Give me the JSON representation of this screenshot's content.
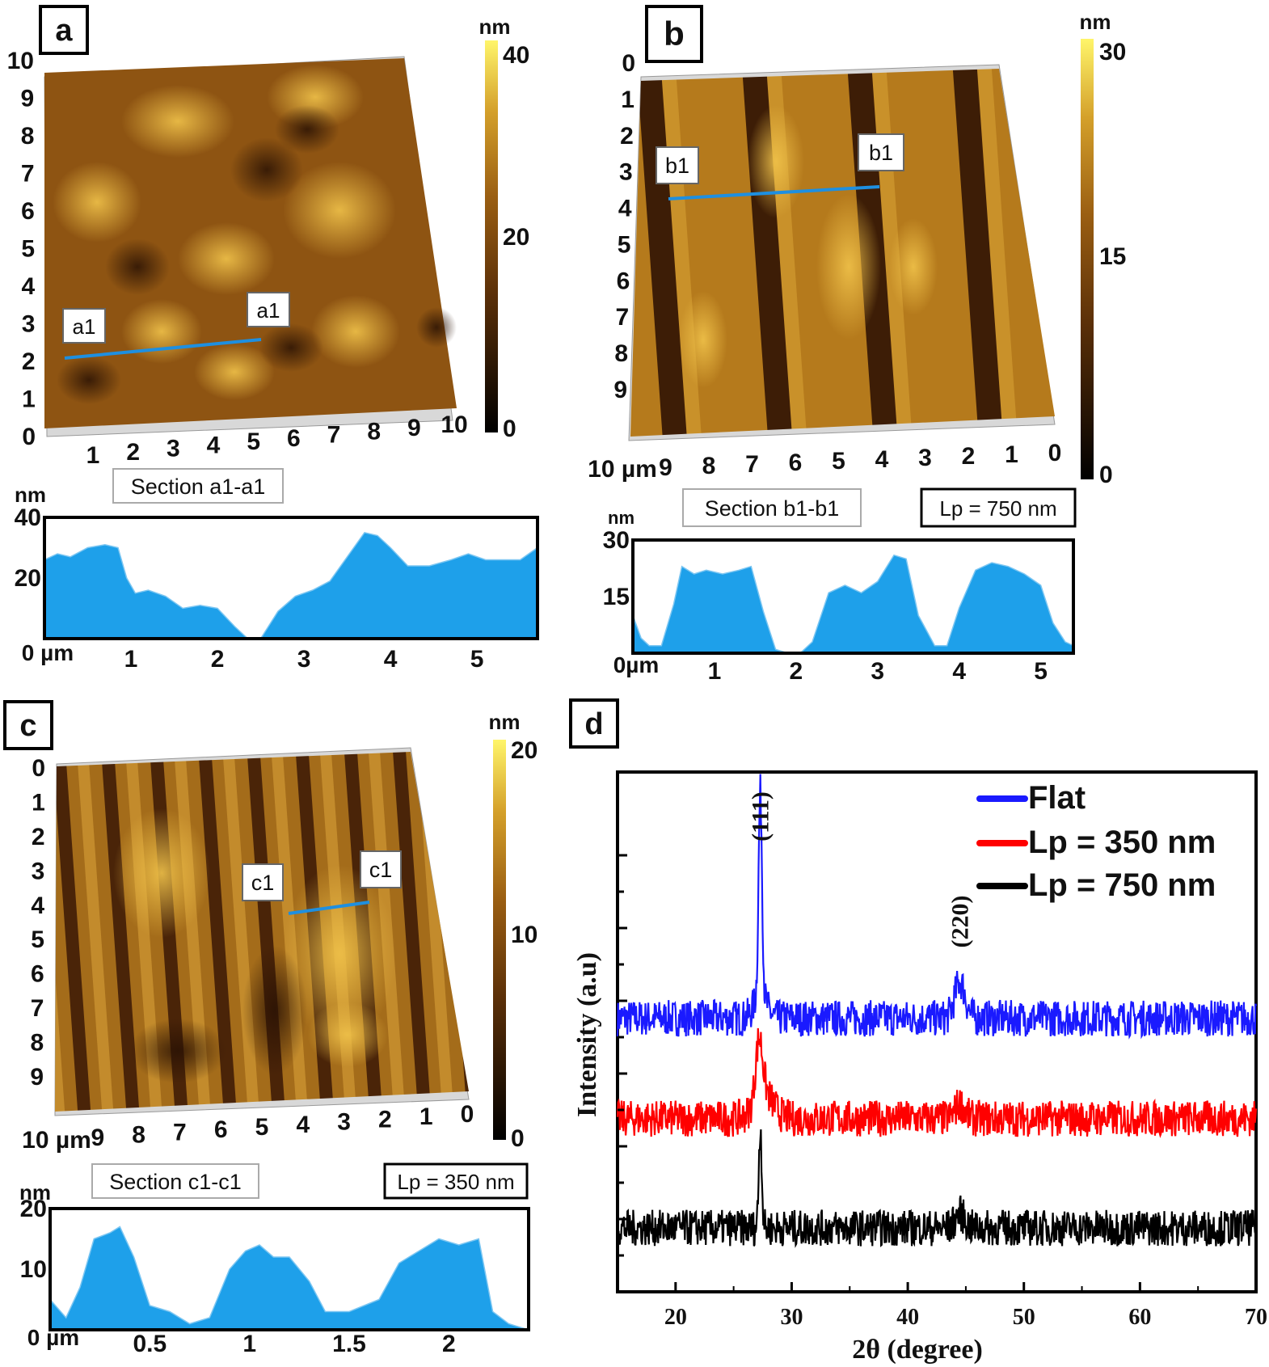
{
  "panels": {
    "a": {
      "letter": "a",
      "colorbar": {
        "unit": "nm",
        "max": "40",
        "mid": "20",
        "min": "0"
      },
      "y_ticks": [
        "10",
        "9",
        "8",
        "7",
        "6",
        "5",
        "4",
        "3",
        "2",
        "1",
        "0"
      ],
      "x_ticks": [
        "1",
        "2",
        "3",
        "4",
        "5",
        "6",
        "7",
        "8",
        "9",
        "10"
      ],
      "markers": [
        "a1",
        "a1"
      ],
      "section_label": "Section a1-a1",
      "profile": {
        "unit": "nm",
        "x_unit": "0 µm",
        "y_ticks": [
          "40",
          "20"
        ],
        "x_ticks": [
          "1",
          "2",
          "3",
          "4",
          "5"
        ],
        "ylim": [
          0,
          40
        ],
        "xlim": [
          0,
          5.7
        ],
        "x": [
          0,
          0.15,
          0.3,
          0.5,
          0.7,
          0.85,
          0.95,
          1.05,
          1.2,
          1.4,
          1.6,
          1.8,
          2.0,
          2.2,
          2.35,
          2.5,
          2.7,
          2.9,
          3.1,
          3.3,
          3.5,
          3.7,
          3.85,
          4.0,
          4.2,
          4.45,
          4.7,
          4.9,
          5.1,
          5.3,
          5.5,
          5.7
        ],
        "y": [
          26,
          28,
          27,
          30,
          31,
          30,
          20,
          15,
          16,
          14,
          10,
          11,
          10,
          4,
          0,
          0,
          9,
          14,
          16,
          19,
          27,
          35,
          34,
          30,
          24,
          24,
          26,
          28,
          26,
          26,
          26,
          30
        ]
      }
    },
    "b": {
      "letter": "b",
      "colorbar": {
        "unit": "nm",
        "max": "30",
        "mid": "15",
        "min": "0"
      },
      "y_ticks": [
        "0",
        "1",
        "2",
        "3",
        "4",
        "5",
        "6",
        "7",
        "8",
        "9"
      ],
      "x_ticks": [
        "10 µm",
        "9",
        "8",
        "7",
        "6",
        "5",
        "4",
        "3",
        "2",
        "1",
        "0"
      ],
      "markers": [
        "b1",
        "b1"
      ],
      "section_label": "Section b1-b1",
      "lp_label": "Lp = 750 nm",
      "profile": {
        "unit": "nm",
        "x_unit": "0µm",
        "y_ticks": [
          "30",
          "15"
        ],
        "x_ticks": [
          "1",
          "2",
          "3",
          "4",
          "5"
        ],
        "ylim": [
          0,
          30
        ],
        "xlim": [
          0,
          5.4
        ],
        "x": [
          0,
          0.1,
          0.2,
          0.35,
          0.5,
          0.6,
          0.75,
          0.9,
          1.1,
          1.3,
          1.45,
          1.6,
          1.75,
          1.9,
          2.05,
          2.2,
          2.4,
          2.6,
          2.8,
          3.0,
          3.2,
          3.35,
          3.5,
          3.7,
          3.85,
          4.0,
          4.2,
          4.4,
          4.6,
          4.8,
          5.0,
          5.15,
          5.3,
          5.4
        ],
        "y": [
          10,
          4,
          2,
          2,
          13,
          23,
          21,
          22,
          21,
          22,
          23,
          11,
          1,
          0,
          0,
          3,
          16,
          18,
          16,
          19,
          26,
          25,
          10,
          2,
          2,
          12,
          22,
          24,
          23,
          21,
          18,
          8,
          3,
          2
        ]
      }
    },
    "c": {
      "letter": "c",
      "colorbar": {
        "unit": "nm",
        "max": "20",
        "mid": "10",
        "min": "0"
      },
      "y_ticks": [
        "0",
        "1",
        "2",
        "3",
        "4",
        "5",
        "6",
        "7",
        "8",
        "9"
      ],
      "x_ticks": [
        "10 µm",
        "9",
        "8",
        "7",
        "6",
        "5",
        "4",
        "3",
        "2",
        "1",
        "0"
      ],
      "markers": [
        "c1",
        "c1"
      ],
      "section_label": "Section c1-c1",
      "lp_label": "Lp = 350 nm",
      "profile": {
        "unit": "nm",
        "x_unit": "0 µm",
        "y_ticks": [
          "20",
          "10"
        ],
        "x_ticks": [
          "0.5",
          "1",
          "1.5",
          "2"
        ],
        "ylim": [
          0,
          20
        ],
        "xlim": [
          0,
          2.4
        ],
        "x": [
          0,
          0.08,
          0.15,
          0.22,
          0.3,
          0.35,
          0.42,
          0.5,
          0.6,
          0.7,
          0.8,
          0.9,
          0.98,
          1.05,
          1.12,
          1.2,
          1.3,
          1.38,
          1.5,
          1.65,
          1.75,
          1.85,
          1.95,
          2.05,
          2.15,
          2.22,
          2.3,
          2.4
        ],
        "y": [
          5,
          2,
          7,
          15,
          16,
          17,
          12,
          4,
          3,
          1,
          2,
          10,
          13,
          14,
          12,
          12,
          8,
          3,
          3,
          5,
          11,
          13,
          15,
          14,
          15,
          3,
          1,
          0
        ]
      }
    }
  },
  "chart_data": {
    "type": "line",
    "panel_letter": "d",
    "title": "",
    "xlabel": "2θ (degree)",
    "ylabel": "Intensity (a.u)",
    "xlim": [
      15,
      70
    ],
    "x_ticks": [
      "20",
      "30",
      "40",
      "50",
      "60",
      "70"
    ],
    "peak_labels": [
      {
        "text": "(111)",
        "x": 27.3
      },
      {
        "text": "(220)",
        "x": 44.5
      }
    ],
    "legend": [
      "Flat",
      "Lp = 350 nm",
      "Lp = 750 nm"
    ],
    "series": [
      {
        "name": "Flat",
        "color": "#1a1aff",
        "baseline": 11.5,
        "noise": 1.0,
        "peaks": [
          {
            "x": 27.3,
            "height": 11.0,
            "width": 0.15
          },
          {
            "x": 27.3,
            "height": 1.4,
            "width": 0.5
          },
          {
            "x": 44.5,
            "height": 2.0,
            "width": 0.45
          }
        ]
      },
      {
        "name": "Lp = 350 nm",
        "color": "#ff0000",
        "baseline": 6.0,
        "noise": 1.0,
        "peaks": [
          {
            "x": 27.2,
            "height": 3.2,
            "width": 0.3
          },
          {
            "x": 27.6,
            "height": 1.4,
            "width": 0.8
          },
          {
            "x": 44.5,
            "height": 0.8,
            "width": 0.4
          }
        ]
      },
      {
        "name": "Lp = 750 nm",
        "color": "#000000",
        "baseline": 0.0,
        "noise": 1.0,
        "peaks": [
          {
            "x": 27.3,
            "height": 5.5,
            "width": 0.13
          },
          {
            "x": 44.5,
            "height": 0.8,
            "width": 0.4
          }
        ]
      }
    ]
  }
}
